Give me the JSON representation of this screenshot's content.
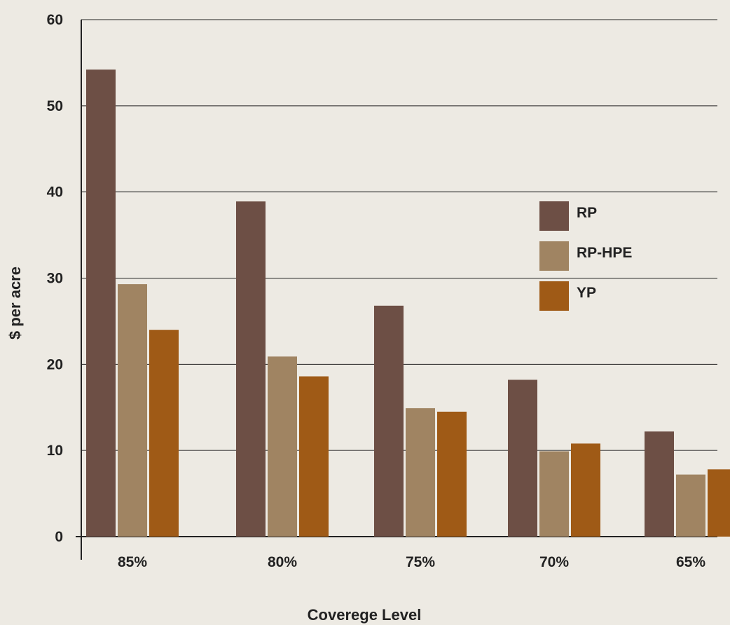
{
  "chart_data": {
    "type": "bar",
    "categories": [
      "85%",
      "80%",
      "75%",
      "70%",
      "65%"
    ],
    "series": [
      {
        "name": "RP",
        "color": "#6d4f45",
        "values": [
          54.2,
          38.9,
          26.8,
          18.2,
          12.2
        ]
      },
      {
        "name": "RP-HPE",
        "color": "#a08462",
        "values": [
          29.3,
          20.9,
          14.9,
          9.9,
          7.2
        ]
      },
      {
        "name": "YP",
        "color": "#9f5a16",
        "values": [
          24.0,
          18.6,
          14.5,
          10.8,
          7.8
        ]
      }
    ],
    "xlabel": "Coverege Level",
    "ylabel": "$ per acre",
    "ylim": [
      0,
      60
    ],
    "yticks": [
      "0",
      "10",
      "20",
      "30",
      "40",
      "50",
      "60"
    ],
    "grid": true,
    "legend_position": "right"
  }
}
